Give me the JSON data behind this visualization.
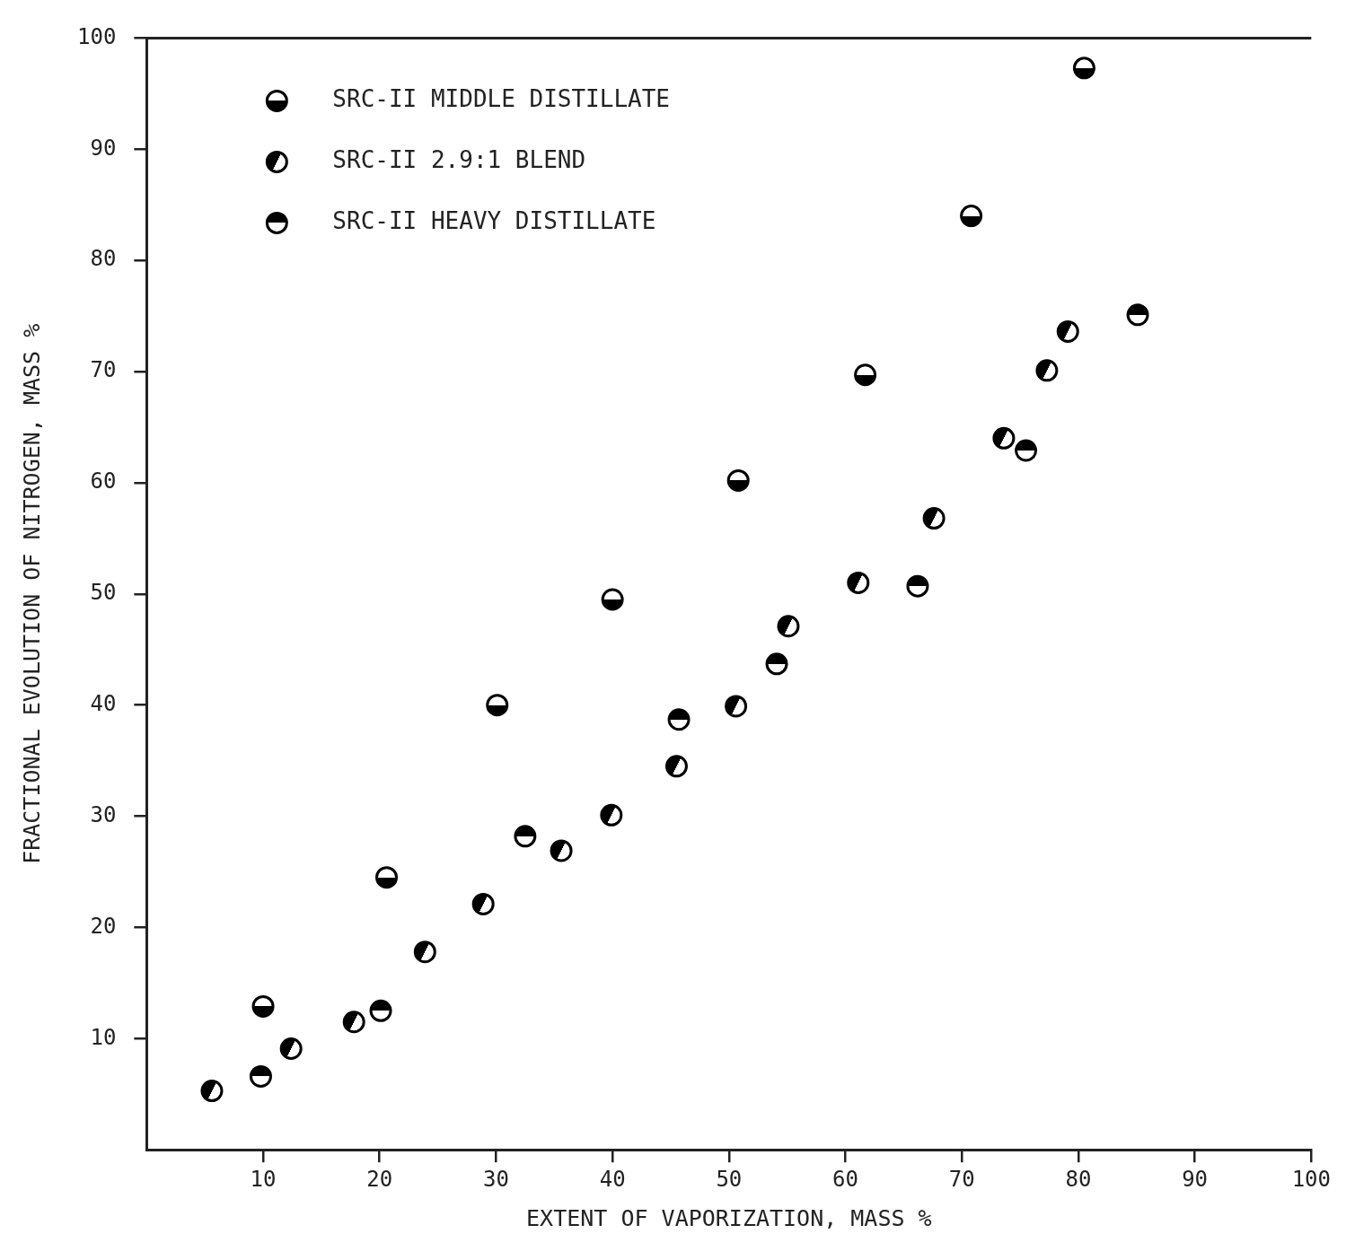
{
  "chart_data": {
    "type": "scatter",
    "xlabel": "EXTENT OF VAPORIZATION, MASS %",
    "ylabel": "FRACTIONAL EVOLUTION OF NITROGEN, MASS %",
    "xlim": [
      0,
      100
    ],
    "xticks": [
      10,
      20,
      30,
      40,
      50,
      60,
      70,
      80,
      90,
      100
    ],
    "ylim": [
      0,
      100
    ],
    "yticks": [
      10,
      20,
      30,
      40,
      50,
      60,
      70,
      80,
      90,
      100
    ],
    "grid": false,
    "legend": "top left",
    "marker": "circle",
    "series": [
      {
        "name": "SRC-II MIDDLE DISTILLATE",
        "color": "#000000",
        "x": [
          10,
          20.6,
          30.1,
          40,
          50.8,
          61.7,
          70.8,
          80.5
        ],
        "values": [
          12.9,
          24.5,
          40,
          49.5,
          60.2,
          69.7,
          84,
          97.3
        ]
      },
      {
        "name": "SRC-II 2.9:1 BLEND",
        "color": "#000000",
        "x": [
          5.6,
          12.4,
          17.8,
          23.9,
          28.9,
          35.6,
          39.9,
          45.5,
          50.6,
          55.1,
          61.1,
          67.6,
          73.6,
          77.3,
          79.1
        ],
        "values": [
          5.3,
          9.1,
          11.5,
          17.8,
          22.1,
          26.9,
          30.1,
          34.5,
          39.9,
          47.1,
          51,
          56.8,
          64,
          70.1,
          73.6
        ]
      },
      {
        "name": "SRC-II HEAVY DISTILLATE",
        "color": "#000000",
        "x": [
          9.8,
          20.1,
          32.5,
          45.7,
          54.1,
          66.2,
          75.5,
          85.1
        ],
        "values": [
          6.6,
          12.5,
          28.2,
          38.7,
          43.7,
          50.7,
          62.9,
          75.1
        ]
      }
    ]
  }
}
